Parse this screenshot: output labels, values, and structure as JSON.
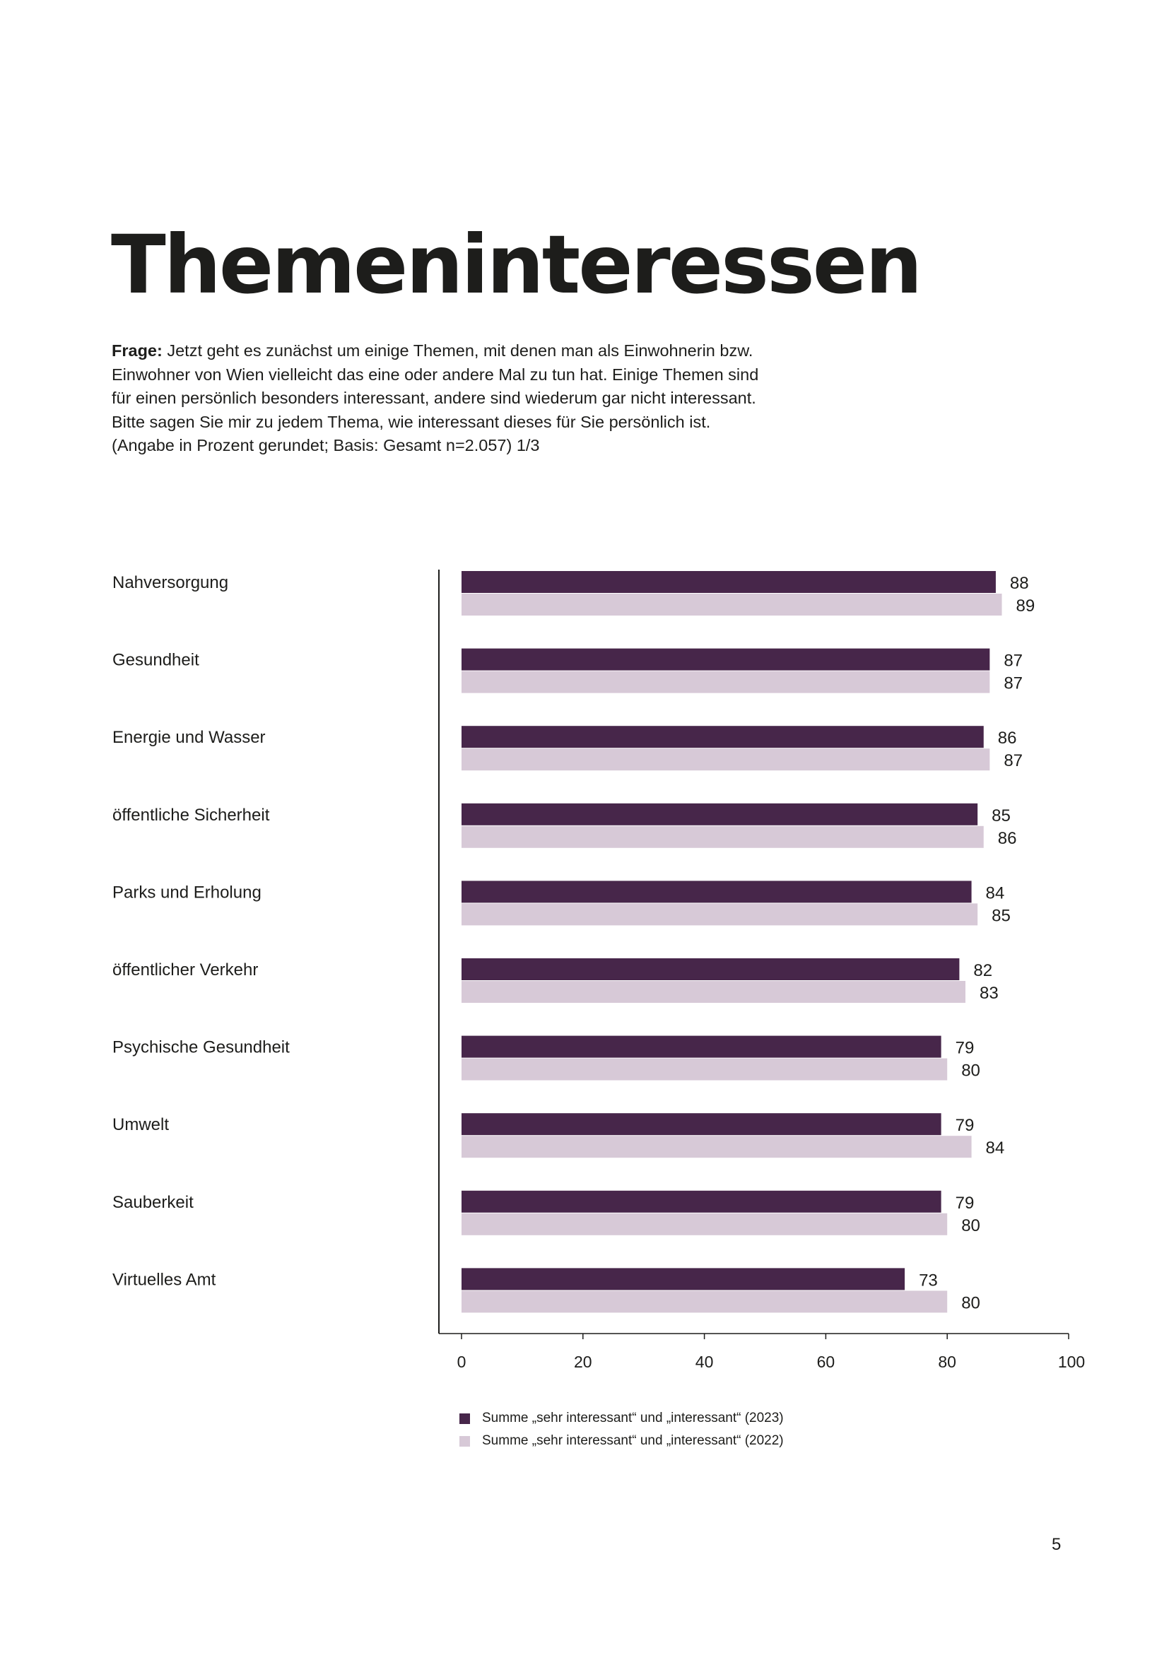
{
  "header": {
    "title": "Themeninteressen"
  },
  "question": {
    "label": "Frage:",
    "lines": [
      " Jetzt geht es zunächst um einige Themen, mit denen man als Einwohnerin bzw.",
      "Einwohner von Wien vielleicht das eine oder andere Mal zu tun hat. Einige Themen sind",
      "für einen persönlich besonders interessant, andere sind wiederum gar nicht interessant.",
      "Bitte sagen Sie mir zu jedem Thema, wie interessant dieses für Sie persönlich ist.",
      "(Angabe in Prozent gerundet; Basis: Gesamt n=2.057) 1/3"
    ]
  },
  "chart_data": {
    "type": "bar",
    "orientation": "horizontal",
    "categories": [
      "Nahversorgung",
      "Gesundheit",
      "Energie und Wasser",
      "öffentliche Sicherheit",
      "Parks und Erholung",
      "öffentlicher Verkehr",
      "Psychische Gesundheit",
      "Umwelt",
      "Sauberkeit",
      "Virtuelles Amt"
    ],
    "series": [
      {
        "name": "Summe „sehr interessant“ und „interessant“ (2023)",
        "color": "#47264a",
        "values": [
          88,
          87,
          86,
          85,
          84,
          82,
          79,
          79,
          79,
          73
        ]
      },
      {
        "name": "Summe „sehr interessant“ und „interessant“ (2022)",
        "color": "#d7c9d7",
        "values": [
          89,
          87,
          87,
          86,
          85,
          83,
          80,
          84,
          80,
          80
        ]
      }
    ],
    "xlim": [
      0,
      100
    ],
    "xticks": [
      0,
      20,
      40,
      60,
      80,
      100
    ],
    "data_labels": true,
    "grid": false,
    "legend_position": "bottom"
  },
  "footer": {
    "page_number": "5"
  }
}
